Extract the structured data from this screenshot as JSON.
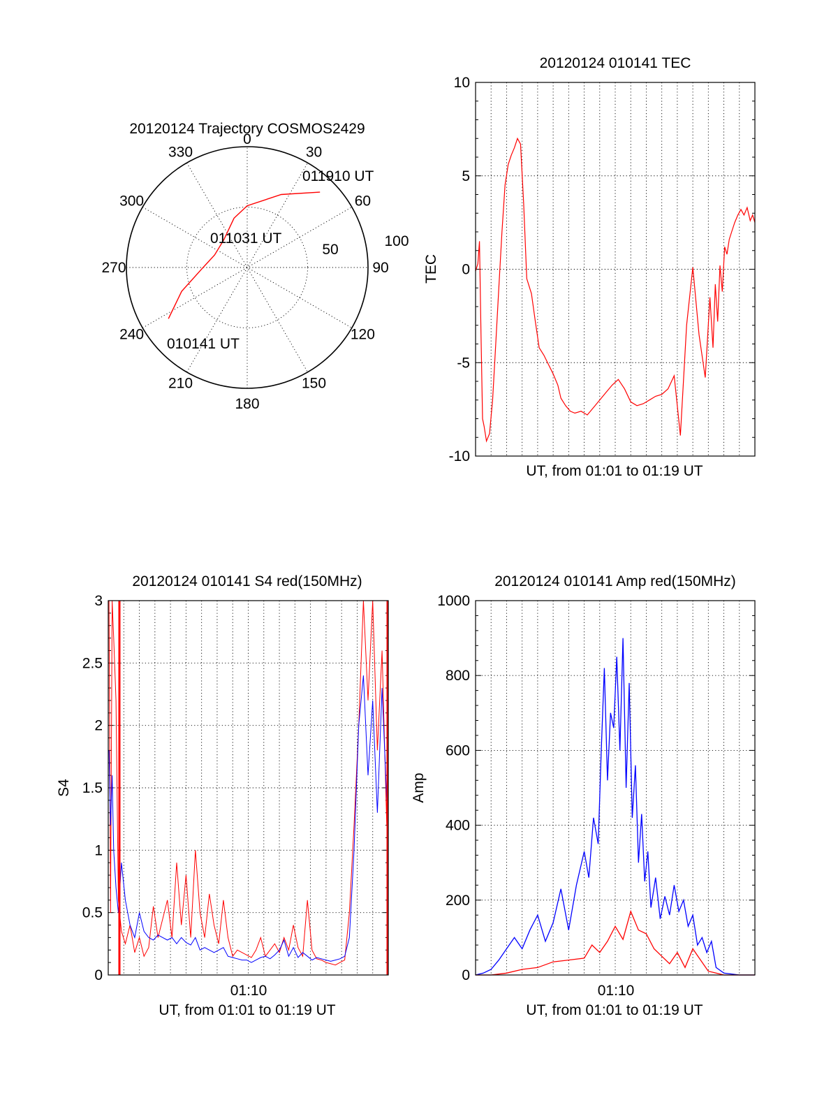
{
  "chart_data": [
    {
      "type": "polar",
      "title": "20120124 Trajectory COSMOS2429",
      "angle_labels": [
        "0",
        "30",
        "60",
        "90",
        "120",
        "150",
        "180",
        "210",
        "240",
        "270",
        "300",
        "330"
      ],
      "radial_labels": [
        "50",
        "100"
      ],
      "rmax": 90,
      "track_color": "#ff0000",
      "track": [
        {
          "az": 237,
          "el": 20
        },
        {
          "az": 250,
          "el": 38
        },
        {
          "az": 268,
          "el": 56
        },
        {
          "az": 291,
          "el": 64
        },
        {
          "az": 320,
          "el": 63
        },
        {
          "az": 345,
          "el": 52
        },
        {
          "az": 0,
          "el": 44
        },
        {
          "az": 25,
          "el": 30
        },
        {
          "az": 44,
          "el": 12
        }
      ],
      "annotations": [
        {
          "text": "011910 UT",
          "az": 44,
          "el": 12
        },
        {
          "text": "011031 UT",
          "az": 345,
          "el": 62
        },
        {
          "text": "010141 UT",
          "az": 237,
          "el": 20
        }
      ]
    },
    {
      "type": "line",
      "title": "20120124 010141 TEC",
      "ylabel": "TEC",
      "xlabel": "UT, from 01:01 to 01:19 UT",
      "xlim": [
        0,
        18
      ],
      "ylim": [
        -10,
        10
      ],
      "yticks": [
        "10",
        "5",
        "0",
        "-5",
        "-10"
      ],
      "color": "#ff0000",
      "series": [
        {
          "x": [
            0.0,
            0.15,
            0.25,
            0.35,
            0.45,
            0.55,
            0.7,
            0.9,
            1.1,
            1.3,
            1.5,
            1.7,
            1.9,
            2.1,
            2.3,
            2.5,
            2.7,
            2.9,
            3.1,
            3.3,
            3.6,
            3.85,
            4.1,
            4.4,
            4.7,
            5.0,
            5.3,
            5.5,
            5.8,
            6.1,
            6.4,
            6.8,
            7.2,
            7.6,
            8.0,
            8.4,
            8.8,
            9.2,
            9.6,
            10.0,
            10.4,
            10.8,
            11.2,
            11.6,
            12.0,
            12.4,
            12.8,
            13.2,
            13.6,
            14.0,
            14.4,
            14.8,
            15.1,
            15.3,
            15.45,
            15.6,
            15.75,
            15.9,
            16.05,
            16.2,
            16.35,
            16.5,
            16.7,
            16.9,
            17.1,
            17.3,
            17.5,
            17.7,
            17.85,
            18.0
          ],
          "y": [
            -0.1,
            0.3,
            1.5,
            -3.5,
            -8.0,
            -8.4,
            -9.2,
            -8.8,
            -7.0,
            -4.0,
            -1.0,
            2.0,
            4.5,
            5.6,
            6.1,
            6.5,
            7.0,
            6.7,
            3.5,
            -0.5,
            -1.3,
            -2.8,
            -4.2,
            -4.6,
            -5.1,
            -5.6,
            -6.2,
            -6.9,
            -7.3,
            -7.6,
            -7.7,
            -7.6,
            -7.8,
            -7.4,
            -7.0,
            -6.6,
            -6.2,
            -5.9,
            -6.4,
            -7.1,
            -7.3,
            -7.2,
            -7.0,
            -6.8,
            -6.7,
            -6.4,
            -5.7,
            -8.9,
            -3.0,
            0.1,
            -3.5,
            -5.8,
            -1.5,
            -4.2,
            -0.8,
            -2.8,
            0.2,
            -1.2,
            1.2,
            0.8,
            1.6,
            2.0,
            2.5,
            2.9,
            3.2,
            2.9,
            3.3,
            2.6,
            2.9,
            2.5
          ]
        }
      ]
    },
    {
      "type": "line",
      "title": "20120124 010141 S4 red(150MHz)",
      "ylabel": "S4",
      "xlabel": "UT, from 01:01 to 01:19 UT",
      "xtick_label": "01:10",
      "xtick_at": 9,
      "xlim": [
        0,
        18
      ],
      "ylim": [
        0,
        3
      ],
      "yticks": [
        "3",
        "2.5",
        "2",
        "1.5",
        "1",
        "0.5",
        "0"
      ],
      "series": [
        {
          "name": "",
          "color": "#ff0000",
          "x": [
            0.05,
            0.15,
            0.25,
            0.35,
            0.5,
            0.65,
            0.85,
            1.1,
            1.4,
            1.7,
            2.0,
            2.3,
            2.6,
            2.9,
            3.2,
            3.5,
            3.8,
            4.1,
            4.4,
            4.7,
            5.0,
            5.3,
            5.6,
            5.9,
            6.2,
            6.5,
            6.8,
            7.1,
            7.4,
            7.7,
            8.0,
            8.3,
            8.6,
            8.9,
            9.2,
            9.5,
            9.8,
            10.1,
            10.4,
            10.7,
            11.0,
            11.3,
            11.6,
            11.9,
            12.2,
            12.5,
            12.8,
            13.1,
            13.4,
            13.7,
            14.0,
            14.3,
            14.6,
            14.9,
            15.2,
            15.5,
            15.8,
            16.1,
            16.4,
            16.7,
            17.0,
            17.3,
            17.6,
            17.9
          ],
          "y": [
            3.0,
            0.5,
            3.0,
            2.7,
            2.2,
            0.6,
            0.35,
            0.25,
            0.4,
            0.18,
            0.3,
            0.15,
            0.22,
            0.55,
            0.3,
            0.45,
            0.6,
            0.3,
            0.9,
            0.4,
            0.8,
            0.3,
            1.0,
            0.5,
            0.3,
            0.65,
            0.4,
            0.25,
            0.6,
            0.3,
            0.15,
            0.2,
            0.18,
            0.16,
            0.14,
            0.2,
            0.3,
            0.15,
            0.2,
            0.25,
            0.18,
            0.3,
            0.2,
            0.4,
            0.22,
            0.15,
            0.6,
            0.2,
            0.13,
            0.12,
            0.1,
            0.09,
            0.08,
            0.1,
            0.12,
            0.5,
            1.2,
            2.0,
            3.0,
            2.2,
            3.0,
            1.8,
            2.6,
            1.2
          ]
        },
        {
          "name": "",
          "color": "#0000ff",
          "x": [
            0.05,
            0.15,
            0.25,
            0.35,
            0.5,
            0.65,
            0.85,
            1.1,
            1.4,
            1.7,
            2.0,
            2.3,
            2.6,
            2.9,
            3.2,
            3.5,
            3.8,
            4.1,
            4.4,
            4.7,
            5.0,
            5.3,
            5.6,
            5.9,
            6.2,
            6.5,
            6.8,
            7.1,
            7.4,
            7.7,
            8.0,
            8.3,
            8.6,
            8.9,
            9.2,
            9.5,
            9.8,
            10.1,
            10.4,
            10.7,
            11.0,
            11.3,
            11.6,
            11.9,
            12.2,
            12.5,
            12.8,
            13.1,
            13.4,
            13.7,
            14.0,
            14.3,
            14.6,
            14.9,
            15.2,
            15.5,
            15.8,
            16.1,
            16.4,
            16.7,
            17.0,
            17.3,
            17.6,
            17.9
          ],
          "y": [
            1.8,
            1.2,
            1.6,
            1.0,
            0.7,
            0.5,
            0.9,
            0.6,
            0.4,
            0.3,
            0.5,
            0.35,
            0.3,
            0.28,
            0.32,
            0.3,
            0.28,
            0.3,
            0.25,
            0.3,
            0.26,
            0.24,
            0.3,
            0.2,
            0.22,
            0.2,
            0.18,
            0.2,
            0.22,
            0.15,
            0.14,
            0.13,
            0.12,
            0.12,
            0.1,
            0.12,
            0.14,
            0.15,
            0.13,
            0.16,
            0.2,
            0.28,
            0.15,
            0.22,
            0.14,
            0.18,
            0.15,
            0.12,
            0.14,
            0.13,
            0.12,
            0.11,
            0.12,
            0.13,
            0.15,
            0.3,
            1.0,
            2.0,
            2.4,
            1.6,
            2.2,
            1.3,
            2.3,
            1.4
          ]
        }
      ]
    },
    {
      "type": "line",
      "title": "20120124 010141 Amp red(150MHz)",
      "ylabel": "Amp",
      "xlabel": "UT, from 01:01 to 01:19 UT",
      "xtick_label": "01:10",
      "xtick_at": 9,
      "xlim": [
        0,
        18
      ],
      "ylim": [
        0,
        1000
      ],
      "yticks": [
        "1000",
        "800",
        "600",
        "400",
        "200",
        "0"
      ],
      "series": [
        {
          "name": "",
          "color": "#0000ff",
          "x": [
            0.0,
            0.5,
            1.0,
            1.5,
            2.0,
            2.5,
            3.0,
            3.5,
            4.0,
            4.5,
            5.0,
            5.5,
            6.0,
            6.5,
            7.0,
            7.3,
            7.6,
            7.9,
            8.1,
            8.3,
            8.5,
            8.7,
            8.9,
            9.1,
            9.3,
            9.5,
            9.7,
            9.9,
            10.1,
            10.3,
            10.5,
            10.7,
            10.9,
            11.1,
            11.3,
            11.6,
            11.9,
            12.2,
            12.5,
            12.8,
            13.1,
            13.4,
            13.7,
            14.0,
            14.3,
            14.6,
            14.9,
            15.2,
            15.5,
            16.0,
            17.0,
            18.0
          ],
          "y": [
            0,
            5,
            15,
            40,
            70,
            100,
            70,
            120,
            160,
            90,
            140,
            230,
            120,
            240,
            330,
            260,
            420,
            350,
            600,
            820,
            520,
            700,
            660,
            850,
            600,
            900,
            500,
            780,
            420,
            560,
            300,
            430,
            250,
            330,
            180,
            260,
            150,
            210,
            160,
            240,
            170,
            200,
            130,
            160,
            80,
            100,
            60,
            90,
            20,
            5,
            0,
            0
          ]
        },
        {
          "name": "",
          "color": "#ff0000",
          "x": [
            0.0,
            1.0,
            2.0,
            3.0,
            4.0,
            5.0,
            6.0,
            7.0,
            7.5,
            8.0,
            8.5,
            9.0,
            9.5,
            10.0,
            10.5,
            11.0,
            11.5,
            12.0,
            12.5,
            13.0,
            13.5,
            14.0,
            14.5,
            15.0,
            15.5,
            16.0,
            18.0
          ],
          "y": [
            0,
            0,
            5,
            15,
            20,
            35,
            40,
            45,
            80,
            60,
            90,
            130,
            95,
            170,
            120,
            110,
            70,
            50,
            30,
            60,
            20,
            70,
            40,
            10,
            5,
            0,
            0
          ]
        }
      ]
    }
  ]
}
